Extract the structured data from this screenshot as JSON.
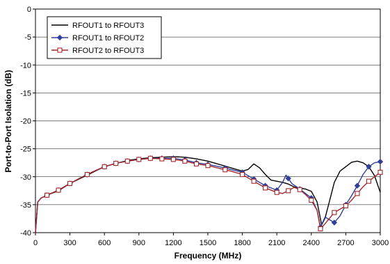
{
  "chart_data": {
    "type": "line",
    "title": "",
    "xlabel": "Frequency (MHz)",
    "ylabel": "Port-to-Port Isolation (dB)",
    "xlim": [
      0,
      3000
    ],
    "ylim": [
      -40,
      0
    ],
    "xticks": [
      0,
      300,
      600,
      900,
      1200,
      1500,
      1800,
      2100,
      2400,
      2700,
      3000
    ],
    "yticks": [
      0,
      -5,
      -10,
      -15,
      -20,
      -25,
      -30,
      -35,
      -40
    ],
    "grid": true,
    "legend_position": "top-left",
    "series": [
      {
        "name": "RFOUT1 to RFOUT3",
        "color": "#000000",
        "marker": "none",
        "points": [
          [
            0,
            -40
          ],
          [
            20,
            -34.5
          ],
          [
            50,
            -33.8
          ],
          [
            100,
            -33.3
          ],
          [
            200,
            -32.5
          ],
          [
            300,
            -31.2
          ],
          [
            400,
            -30.2
          ],
          [
            500,
            -29.2
          ],
          [
            600,
            -28.2
          ],
          [
            700,
            -27.6
          ],
          [
            800,
            -27.1
          ],
          [
            900,
            -26.8
          ],
          [
            1000,
            -26.6
          ],
          [
            1100,
            -26.5
          ],
          [
            1200,
            -26.4
          ],
          [
            1300,
            -26.5
          ],
          [
            1400,
            -26.8
          ],
          [
            1500,
            -27.2
          ],
          [
            1600,
            -27.8
          ],
          [
            1700,
            -28.4
          ],
          [
            1800,
            -29.0
          ],
          [
            1850,
            -28.7
          ],
          [
            1900,
            -27.7
          ],
          [
            1950,
            -28.4
          ],
          [
            2000,
            -29.6
          ],
          [
            2050,
            -30.6
          ],
          [
            2100,
            -30.8
          ],
          [
            2150,
            -31.0
          ],
          [
            2200,
            -31.3
          ],
          [
            2250,
            -31.8
          ],
          [
            2300,
            -32.0
          ],
          [
            2350,
            -32.2
          ],
          [
            2400,
            -32.6
          ],
          [
            2450,
            -34.5
          ],
          [
            2490,
            -38.6
          ],
          [
            2520,
            -37.4
          ],
          [
            2560,
            -34.2
          ],
          [
            2600,
            -31.0
          ],
          [
            2650,
            -29.0
          ],
          [
            2700,
            -28.2
          ],
          [
            2750,
            -27.4
          ],
          [
            2800,
            -27.2
          ],
          [
            2850,
            -27.5
          ],
          [
            2900,
            -28.2
          ],
          [
            2950,
            -29.8
          ],
          [
            3000,
            -32.8
          ]
        ]
      },
      {
        "name": "RFOUT1 to RFOUT2",
        "color": "#2f3f9a",
        "marker": "diamond",
        "points": [
          [
            0,
            -40
          ],
          [
            20,
            -34.5
          ],
          [
            50,
            -33.8
          ],
          [
            100,
            -33.3
          ],
          [
            200,
            -32.4
          ],
          [
            300,
            -31.2
          ],
          [
            400,
            -30.1
          ],
          [
            500,
            -29.1
          ],
          [
            600,
            -28.2
          ],
          [
            700,
            -27.6
          ],
          [
            800,
            -27.2
          ],
          [
            900,
            -26.9
          ],
          [
            1000,
            -26.7
          ],
          [
            1100,
            -26.7
          ],
          [
            1200,
            -26.7
          ],
          [
            1300,
            -27.0
          ],
          [
            1400,
            -27.5
          ],
          [
            1500,
            -27.8
          ],
          [
            1600,
            -28.2
          ],
          [
            1700,
            -28.7
          ],
          [
            1800,
            -29.2
          ],
          [
            1900,
            -30.4
          ],
          [
            2000,
            -31.6
          ],
          [
            2100,
            -32.4
          ],
          [
            2150,
            -31.0
          ],
          [
            2180,
            -29.7
          ],
          [
            2230,
            -31.2
          ],
          [
            2300,
            -32.2
          ],
          [
            2400,
            -33.8
          ],
          [
            2450,
            -36.0
          ],
          [
            2480,
            -39.0
          ],
          [
            2520,
            -37.2
          ],
          [
            2600,
            -38.2
          ],
          [
            2650,
            -37.0
          ],
          [
            2700,
            -35.0
          ],
          [
            2750,
            -33.4
          ],
          [
            2800,
            -31.6
          ],
          [
            2850,
            -29.6
          ],
          [
            2900,
            -28.2
          ],
          [
            2950,
            -27.5
          ],
          [
            3000,
            -27.3
          ]
        ]
      },
      {
        "name": "RFOUT2 to RFOUT3",
        "color": "#a0282d",
        "marker": "square",
        "points": [
          [
            0,
            -40
          ],
          [
            20,
            -34.5
          ],
          [
            50,
            -33.8
          ],
          [
            100,
            -33.3
          ],
          [
            200,
            -32.4
          ],
          [
            300,
            -31.2
          ],
          [
            400,
            -30.1
          ],
          [
            500,
            -29.1
          ],
          [
            600,
            -28.2
          ],
          [
            700,
            -27.6
          ],
          [
            800,
            -27.2
          ],
          [
            900,
            -26.9
          ],
          [
            1000,
            -26.7
          ],
          [
            1100,
            -26.8
          ],
          [
            1200,
            -26.9
          ],
          [
            1300,
            -27.2
          ],
          [
            1400,
            -27.7
          ],
          [
            1500,
            -28.0
          ],
          [
            1600,
            -28.5
          ],
          [
            1700,
            -29.0
          ],
          [
            1800,
            -29.6
          ],
          [
            1900,
            -30.8
          ],
          [
            2000,
            -32.0
          ],
          [
            2100,
            -32.8
          ],
          [
            2150,
            -33.0
          ],
          [
            2200,
            -32.5
          ],
          [
            2250,
            -31.9
          ],
          [
            2300,
            -32.3
          ],
          [
            2350,
            -33.2
          ],
          [
            2400,
            -34.2
          ],
          [
            2450,
            -36.0
          ],
          [
            2480,
            -39.3
          ],
          [
            2520,
            -38.4
          ],
          [
            2600,
            -36.4
          ],
          [
            2700,
            -35.2
          ],
          [
            2750,
            -34.2
          ],
          [
            2800,
            -33.0
          ],
          [
            2850,
            -31.8
          ],
          [
            2900,
            -30.8
          ],
          [
            2950,
            -30.0
          ],
          [
            3000,
            -29.2
          ]
        ]
      }
    ]
  }
}
